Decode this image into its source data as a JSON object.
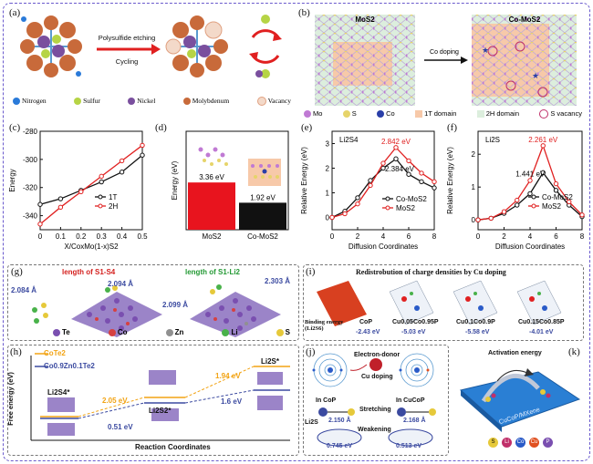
{
  "outer_frame_color": "#6a5acd",
  "panels": {
    "a": {
      "label": "(a)",
      "arrow_top": "Polysulfide etching",
      "arrow_bottom": "Cycling",
      "legend": [
        {
          "name": "Nitrogen",
          "color": "#2a7ad9"
        },
        {
          "name": "Sulfur",
          "color": "#b6d445"
        },
        {
          "name": "Nickel",
          "color": "#7a4f9e"
        },
        {
          "name": "Molybdenum",
          "color": "#c86a3a"
        },
        {
          "name": "Vacancy",
          "color": "#f3d9c9"
        }
      ]
    },
    "b": {
      "label": "(b)",
      "left_title": "MoS2",
      "right_title": "Co-MoS2",
      "arrow_label": "Co doping",
      "legend": [
        {
          "name": "Mo",
          "color": "#c07ad4",
          "shape": "circle"
        },
        {
          "name": "S",
          "color": "#e6d46a",
          "shape": "circle"
        },
        {
          "name": "Co",
          "color": "#2a3fa8",
          "shape": "circle"
        },
        {
          "name": "1T domain",
          "color": "#f7c9a9",
          "shape": "square"
        },
        {
          "name": "2H domain",
          "color": "#dceedd",
          "shape": "square"
        },
        {
          "name": "S vacancy",
          "color": "#c0306a",
          "shape": "ring"
        }
      ]
    },
    "c1": {
      "label": "(c)",
      "chart_data": {
        "type": "line",
        "xlabel": "X/CoxMo(1-x)S2",
        "ylabel": "Energy",
        "x": [
          0.0,
          0.1,
          0.2,
          0.3,
          0.4,
          0.5
        ],
        "xlim": [
          0.0,
          0.5
        ],
        "ylim": [
          -350,
          -280
        ],
        "yticks": [
          -280,
          -300,
          -320,
          -340
        ],
        "series": [
          {
            "name": "1T",
            "color": "#111111",
            "values": [
              -332,
              -328,
              -322,
              -316,
              -309,
              -297
            ]
          },
          {
            "name": "2H",
            "color": "#e02020",
            "values": [
              -346,
              -334,
              -323,
              -312,
              -301,
              -290
            ]
          }
        ]
      }
    },
    "d": {
      "label": "(d)",
      "chart_data": {
        "type": "bar",
        "ylabel": "Energy (eV)",
        "categories": [
          "MoS2",
          "Co-MoS2"
        ],
        "values": [
          3.36,
          1.92
        ],
        "labels": [
          "3.36 eV",
          "1.92 eV"
        ],
        "colors": [
          "#e8141e",
          "#111111"
        ],
        "ylim": [
          0,
          7
        ]
      }
    },
    "e": {
      "label": "(e)",
      "species": "Li2S4",
      "chart_data": {
        "type": "line",
        "xlabel": "Diffusion Coordinates",
        "ylabel": "Relative Energy (eV)",
        "x": [
          0,
          1,
          2,
          3,
          4,
          5,
          6,
          7,
          8
        ],
        "xticks": [
          0,
          2,
          4,
          6,
          8
        ],
        "ylim": [
          -0.5,
          3.5
        ],
        "yticks": [
          0,
          1,
          2,
          3
        ],
        "annotations": [
          "2.842 eV",
          "2.384 eV"
        ],
        "series": [
          {
            "name": "Co-MoS2",
            "color": "#111111",
            "values": [
              0.0,
              0.25,
              0.8,
              1.5,
              2.0,
              2.38,
              1.75,
              1.45,
              1.2
            ]
          },
          {
            "name": "MoS2",
            "color": "#e02020",
            "values": [
              0.0,
              0.15,
              0.55,
              1.3,
              2.2,
              2.84,
              2.3,
              1.8,
              1.45
            ]
          }
        ]
      }
    },
    "f": {
      "label": "(f)",
      "species": "Li2S",
      "chart_data": {
        "type": "line",
        "xlabel": "Diffusion Coordinates",
        "ylabel": "Relative Energy (eV)",
        "x": [
          0,
          1,
          2,
          3,
          4,
          5,
          6,
          7,
          8
        ],
        "xticks": [
          0,
          2,
          4,
          6,
          8
        ],
        "ylim": [
          -0.3,
          2.7
        ],
        "yticks": [
          0,
          1,
          2
        ],
        "annotations": [
          "2.261 eV",
          "1.441 eV"
        ],
        "series": [
          {
            "name": "Co-MoS2",
            "color": "#111111",
            "values": [
              0.0,
              0.05,
              0.2,
              0.45,
              0.8,
              1.44,
              0.9,
              0.45,
              0.1
            ]
          },
          {
            "name": "MoS2",
            "color": "#e02020",
            "values": [
              0.0,
              0.05,
              0.25,
              0.6,
              1.2,
              2.26,
              1.1,
              0.55,
              0.15
            ]
          }
        ]
      }
    },
    "g": {
      "label": "(g)",
      "title_left": "length of S1-S4",
      "title_right": "length of S1-Li2",
      "dist": [
        "2.094 Å",
        "2.084 Å",
        "2.099 Å",
        "2.303 Å"
      ],
      "legend": [
        {
          "name": "Te",
          "color": "#7a4fb0"
        },
        {
          "name": "Co",
          "color": "#d64040"
        },
        {
          "name": "Zn",
          "color": "#909090"
        },
        {
          "name": "Li",
          "color": "#49b24a"
        },
        {
          "name": "S",
          "color": "#e6c93a"
        }
      ]
    },
    "h": {
      "label": "(h)",
      "legend": [
        {
          "name": "CoTe2",
          "color": "#f2a313"
        },
        {
          "name": "Co0.9Zn0.1Te2",
          "color": "#3b4aa0"
        }
      ],
      "ylabel": "Free energy (eV)",
      "xlabel": "Reaction Coordinates",
      "states": [
        "Li2S4*",
        "Li2S2*",
        "Li2S*"
      ],
      "energies_cote2": [
        "2.05 eV",
        "1.94 eV"
      ],
      "energies_zn": [
        "0.51 eV",
        "1.6 eV"
      ]
    },
    "i": {
      "label": "(i)",
      "title": "Redistrobution of charge densities by Cu doping",
      "binding_label": "Binding energy (Li2S6)",
      "items": [
        {
          "name": "CoP",
          "energy": "-2.43 eV"
        },
        {
          "name": "Cu0.05Co0.95P",
          "energy": "-5.03 eV"
        },
        {
          "name": "Cu0.1Co0.9P",
          "energy": "-5.58 eV"
        },
        {
          "name": "Cu0.15Co0.85P",
          "energy": "-4.01 eV"
        }
      ]
    },
    "j": {
      "label": "(j)",
      "electron_donor": "Electron-donor",
      "cu_doping": "Cu doping",
      "in_cop": "In CoP",
      "in_cucop": "In CuCoP",
      "stretching": "Stretching",
      "weakening": "Weakening",
      "li2s": "Li2S",
      "d1": "2.150 Å",
      "d2": "2.168 Å",
      "e1": "0.745 eV",
      "e2": "0.513 eV"
    },
    "k": {
      "label": "(k)",
      "activation": "Activation energy",
      "legend": [
        {
          "name": "S",
          "color": "#e6c93a"
        },
        {
          "name": "Li",
          "color": "#c0306a"
        },
        {
          "name": "Co",
          "color": "#2a5bc8"
        },
        {
          "name": "Cu",
          "color": "#e05020"
        },
        {
          "name": "P",
          "color": "#7a4fb0"
        }
      ]
    }
  }
}
